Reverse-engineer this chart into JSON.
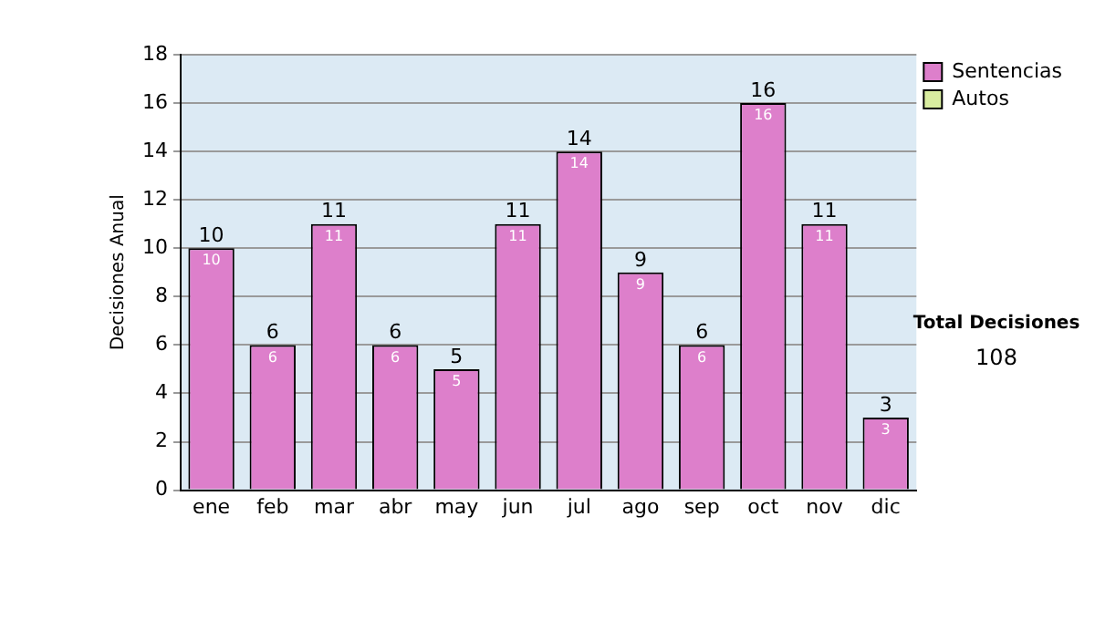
{
  "chart_data": {
    "type": "bar",
    "ylabel": "Decisiones Anual",
    "categories": [
      "ene",
      "feb",
      "mar",
      "abr",
      "may",
      "jun",
      "jul",
      "ago",
      "sep",
      "oct",
      "nov",
      "dic"
    ],
    "series": [
      {
        "name": "Sentencias",
        "color": "#dd7fcb",
        "values": [
          10,
          6,
          11,
          6,
          5,
          11,
          14,
          9,
          6,
          16,
          11,
          3
        ],
        "value_labels": [
          "10",
          "6",
          "11",
          "6",
          "5",
          "11",
          "14",
          "9",
          "6",
          "16",
          "11",
          "3"
        ]
      },
      {
        "name": "Autos",
        "color": "#d9eda0",
        "values": [
          0,
          0,
          0,
          0,
          0,
          0,
          0,
          0,
          0,
          0,
          0,
          0
        ]
      }
    ],
    "stacked": true,
    "totals": [
      "10",
      "6",
      "11",
      "6",
      "5",
      "11",
      "14",
      "9",
      "6",
      "16",
      "11",
      "3"
    ],
    "ylim": [
      0,
      18
    ],
    "yticks": [
      0,
      2,
      4,
      6,
      8,
      10,
      12,
      14,
      16,
      18
    ],
    "grid": "y",
    "legend": "right",
    "annotations": [
      "Total Decisiones",
      "108"
    ]
  }
}
